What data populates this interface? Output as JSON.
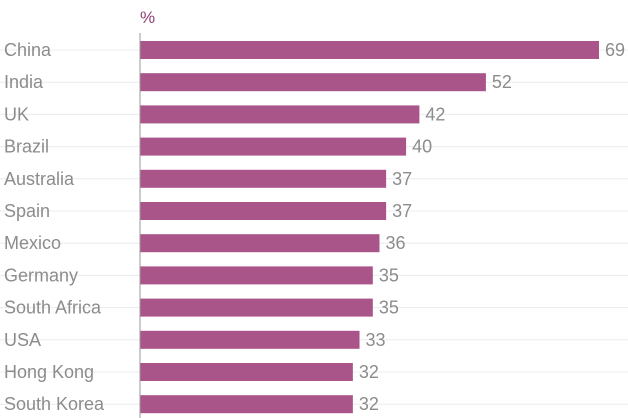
{
  "chart_data": {
    "type": "bar",
    "orientation": "horizontal",
    "unit": "%",
    "categories": [
      "China",
      "India",
      "UK",
      "Brazil",
      "Australia",
      "Spain",
      "Mexico",
      "Germany",
      "South Africa",
      "USA",
      "Hong Kong",
      "South Korea"
    ],
    "values": [
      69,
      52,
      42,
      40,
      37,
      37,
      36,
      35,
      35,
      33,
      32,
      32
    ],
    "title": "",
    "xlabel": "",
    "ylabel": "",
    "xlim": [
      0,
      69
    ],
    "grid": false,
    "bar_color": "#a9558a",
    "unit_color": "#8f3f73",
    "label_color": "#8c8c8c"
  }
}
